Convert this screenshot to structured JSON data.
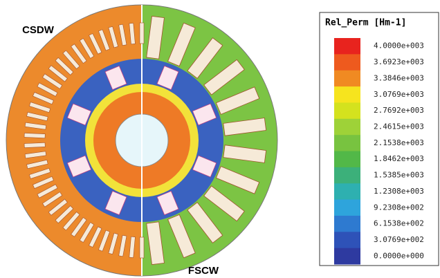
{
  "labels": {
    "left": "CSDW",
    "right": "FSCW"
  },
  "legend": {
    "title": "Rel_Perm [Hm-1]",
    "entries": [
      {
        "label": "4.0000e+003",
        "color": "#e8231e"
      },
      {
        "label": "3.6923e+003",
        "color": "#ee5a1e"
      },
      {
        "label": "3.3846e+003",
        "color": "#f08a22"
      },
      {
        "label": "3.0769e+003",
        "color": "#f6e41e"
      },
      {
        "label": "2.7692e+003",
        "color": "#d4e21e"
      },
      {
        "label": "2.4615e+003",
        "color": "#9ed238"
      },
      {
        "label": "2.1538e+003",
        "color": "#78c340"
      },
      {
        "label": "1.8462e+003",
        "color": "#52b848"
      },
      {
        "label": "1.5385e+003",
        "color": "#3cb07a"
      },
      {
        "label": "1.2308e+003",
        "color": "#2eb0b0"
      },
      {
        "label": "9.2308e+002",
        "color": "#2ea4dc"
      },
      {
        "label": "6.1538e+002",
        "color": "#2e7ad0"
      },
      {
        "label": "3.0769e+002",
        "color": "#2e52b8"
      },
      {
        "label": "0.0000e+000",
        "color": "#2e3aa0"
      }
    ]
  }
}
